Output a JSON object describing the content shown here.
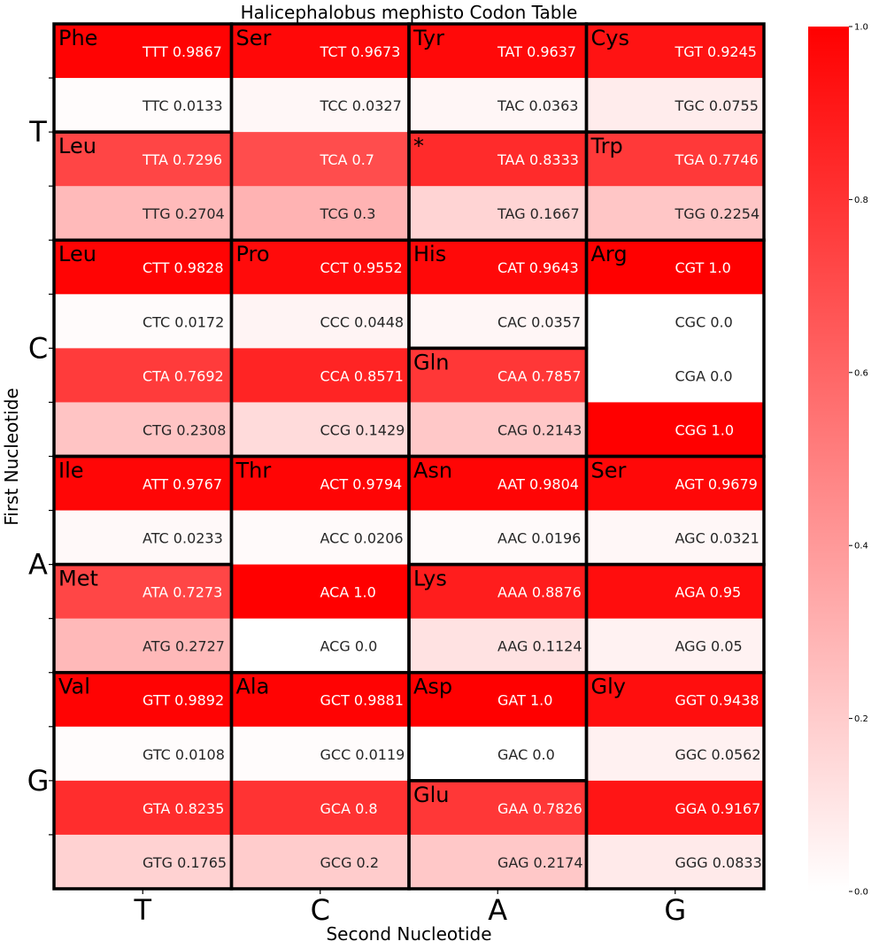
{
  "chart_data": {
    "type": "heatmap",
    "title": "Halicephalobus mephisto Codon Table",
    "xlabel": "Second Nucleotide",
    "ylabel": "First Nucleotide",
    "x_categories": [
      "T",
      "C",
      "A",
      "G"
    ],
    "y_categories": [
      "T",
      "C",
      "A",
      "G"
    ],
    "third_nucleotides": [
      "T",
      "C",
      "A",
      "G"
    ],
    "value_range": [
      0,
      1
    ],
    "colormap": {
      "low": "#ffffff",
      "high": "#ff0000"
    },
    "colorbar_ticks": [
      "0.0",
      "0.2",
      "0.4",
      "0.6",
      "0.8",
      "1.0"
    ],
    "codons": [
      {
        "codon": "TTT",
        "value": 0.9867,
        "label": "TTT 0.9867"
      },
      {
        "codon": "TTC",
        "value": 0.0133,
        "label": "TTC 0.0133"
      },
      {
        "codon": "TTA",
        "value": 0.7296,
        "label": "TTA 0.7296"
      },
      {
        "codon": "TTG",
        "value": 0.2704,
        "label": "TTG 0.2704"
      },
      {
        "codon": "TCT",
        "value": 0.9673,
        "label": "TCT 0.9673"
      },
      {
        "codon": "TCC",
        "value": 0.0327,
        "label": "TCC 0.0327"
      },
      {
        "codon": "TCA",
        "value": 0.7,
        "label": "TCA 0.7"
      },
      {
        "codon": "TCG",
        "value": 0.3,
        "label": "TCG 0.3"
      },
      {
        "codon": "TAT",
        "value": 0.9637,
        "label": "TAT 0.9637"
      },
      {
        "codon": "TAC",
        "value": 0.0363,
        "label": "TAC 0.0363"
      },
      {
        "codon": "TAA",
        "value": 0.8333,
        "label": "TAA 0.8333"
      },
      {
        "codon": "TAG",
        "value": 0.1667,
        "label": "TAG 0.1667"
      },
      {
        "codon": "TGT",
        "value": 0.9245,
        "label": "TGT 0.9245"
      },
      {
        "codon": "TGC",
        "value": 0.0755,
        "label": "TGC 0.0755"
      },
      {
        "codon": "TGA",
        "value": 0.7746,
        "label": "TGA 0.7746"
      },
      {
        "codon": "TGG",
        "value": 0.2254,
        "label": "TGG 0.2254"
      },
      {
        "codon": "CTT",
        "value": 0.9828,
        "label": "CTT 0.9828"
      },
      {
        "codon": "CTC",
        "value": 0.0172,
        "label": "CTC 0.0172"
      },
      {
        "codon": "CTA",
        "value": 0.7692,
        "label": "CTA 0.7692"
      },
      {
        "codon": "CTG",
        "value": 0.2308,
        "label": "CTG 0.2308"
      },
      {
        "codon": "CCT",
        "value": 0.9552,
        "label": "CCT 0.9552"
      },
      {
        "codon": "CCC",
        "value": 0.0448,
        "label": "CCC 0.0448"
      },
      {
        "codon": "CCA",
        "value": 0.8571,
        "label": "CCA 0.8571"
      },
      {
        "codon": "CCG",
        "value": 0.1429,
        "label": "CCG 0.1429"
      },
      {
        "codon": "CAT",
        "value": 0.9643,
        "label": "CAT 0.9643"
      },
      {
        "codon": "CAC",
        "value": 0.0357,
        "label": "CAC 0.0357"
      },
      {
        "codon": "CAA",
        "value": 0.7857,
        "label": "CAA 0.7857"
      },
      {
        "codon": "CAG",
        "value": 0.2143,
        "label": "CAG 0.2143"
      },
      {
        "codon": "CGT",
        "value": 1.0,
        "label": "CGT 1.0"
      },
      {
        "codon": "CGC",
        "value": 0.0,
        "label": "CGC 0.0"
      },
      {
        "codon": "CGA",
        "value": 0.0,
        "label": "CGA 0.0"
      },
      {
        "codon": "CGG",
        "value": 1.0,
        "label": "CGG 1.0"
      },
      {
        "codon": "ATT",
        "value": 0.9767,
        "label": "ATT 0.9767"
      },
      {
        "codon": "ATC",
        "value": 0.0233,
        "label": "ATC 0.0233"
      },
      {
        "codon": "ATA",
        "value": 0.7273,
        "label": "ATA 0.7273"
      },
      {
        "codon": "ATG",
        "value": 0.2727,
        "label": "ATG 0.2727"
      },
      {
        "codon": "ACT",
        "value": 0.9794,
        "label": "ACT 0.9794"
      },
      {
        "codon": "ACC",
        "value": 0.0206,
        "label": "ACC 0.0206"
      },
      {
        "codon": "ACA",
        "value": 1.0,
        "label": "ACA 1.0"
      },
      {
        "codon": "ACG",
        "value": 0.0,
        "label": "ACG 0.0"
      },
      {
        "codon": "AAT",
        "value": 0.9804,
        "label": "AAT 0.9804"
      },
      {
        "codon": "AAC",
        "value": 0.0196,
        "label": "AAC 0.0196"
      },
      {
        "codon": "AAA",
        "value": 0.8876,
        "label": "AAA 0.8876"
      },
      {
        "codon": "AAG",
        "value": 0.1124,
        "label": "AAG 0.1124"
      },
      {
        "codon": "AGT",
        "value": 0.9679,
        "label": "AGT 0.9679"
      },
      {
        "codon": "AGC",
        "value": 0.0321,
        "label": "AGC 0.0321"
      },
      {
        "codon": "AGA",
        "value": 0.95,
        "label": "AGA 0.95"
      },
      {
        "codon": "AGG",
        "value": 0.05,
        "label": "AGG 0.05"
      },
      {
        "codon": "GTT",
        "value": 0.9892,
        "label": "GTT 0.9892"
      },
      {
        "codon": "GTC",
        "value": 0.0108,
        "label": "GTC 0.0108"
      },
      {
        "codon": "GTA",
        "value": 0.8235,
        "label": "GTA 0.8235"
      },
      {
        "codon": "GTG",
        "value": 0.1765,
        "label": "GTG 0.1765"
      },
      {
        "codon": "GCT",
        "value": 0.9881,
        "label": "GCT 0.9881"
      },
      {
        "codon": "GCC",
        "value": 0.0119,
        "label": "GCC 0.0119"
      },
      {
        "codon": "GCA",
        "value": 0.8,
        "label": "GCA 0.8"
      },
      {
        "codon": "GCG",
        "value": 0.2,
        "label": "GCG 0.2"
      },
      {
        "codon": "GAT",
        "value": 1.0,
        "label": "GAT 1.0"
      },
      {
        "codon": "GAC",
        "value": 0.0,
        "label": "GAC 0.0"
      },
      {
        "codon": "GAA",
        "value": 0.7826,
        "label": "GAA 0.7826"
      },
      {
        "codon": "GAG",
        "value": 0.2174,
        "label": "GAG 0.2174"
      },
      {
        "codon": "GGT",
        "value": 0.9438,
        "label": "GGT 0.9438"
      },
      {
        "codon": "GGC",
        "value": 0.0562,
        "label": "GGC 0.0562"
      },
      {
        "codon": "GGA",
        "value": 0.9167,
        "label": "GGA 0.9167"
      },
      {
        "codon": "GGG",
        "value": 0.0833,
        "label": "GGG 0.0833"
      }
    ],
    "amino_acid_groups": [
      {
        "amino_acid": "Phe",
        "codons": [
          "TTT",
          "TTC"
        ]
      },
      {
        "amino_acid": "Leu",
        "codons": [
          "TTA",
          "TTG"
        ]
      },
      {
        "amino_acid": "Ser",
        "codons": [
          "TCT",
          "TCC",
          "TCA",
          "TCG"
        ]
      },
      {
        "amino_acid": "Tyr",
        "codons": [
          "TAT",
          "TAC"
        ]
      },
      {
        "amino_acid": "*",
        "codons": [
          "TAA",
          "TAG"
        ]
      },
      {
        "amino_acid": "Cys",
        "codons": [
          "TGT",
          "TGC"
        ]
      },
      {
        "amino_acid": "Trp",
        "codons": [
          "TGA",
          "TGG"
        ]
      },
      {
        "amino_acid": "Leu",
        "codons": [
          "CTT",
          "CTC",
          "CTA",
          "CTG"
        ]
      },
      {
        "amino_acid": "Pro",
        "codons": [
          "CCT",
          "CCC",
          "CCA",
          "CCG"
        ]
      },
      {
        "amino_acid": "His",
        "codons": [
          "CAT",
          "CAC"
        ]
      },
      {
        "amino_acid": "Gln",
        "codons": [
          "CAA",
          "CAG"
        ]
      },
      {
        "amino_acid": "Arg",
        "codons": [
          "CGT",
          "CGC",
          "CGA",
          "CGG"
        ]
      },
      {
        "amino_acid": "Ile",
        "codons": [
          "ATT",
          "ATC"
        ]
      },
      {
        "amino_acid": "Met",
        "codons": [
          "ATA",
          "ATG"
        ]
      },
      {
        "amino_acid": "Thr",
        "codons": [
          "ACT",
          "ACC",
          "ACA",
          "ACG"
        ]
      },
      {
        "amino_acid": "Asn",
        "codons": [
          "AAT",
          "AAC"
        ]
      },
      {
        "amino_acid": "Lys",
        "codons": [
          "AAA",
          "AAG"
        ]
      },
      {
        "amino_acid": "Ser",
        "codons": [
          "AGT",
          "AGC"
        ]
      },
      {
        "amino_acid": "Arg",
        "codons": [
          "AGA",
          "AGG"
        ]
      },
      {
        "amino_acid": "Val",
        "codons": [
          "GTT",
          "GTC",
          "GTA",
          "GTG"
        ]
      },
      {
        "amino_acid": "Ala",
        "codons": [
          "GCT",
          "GCC",
          "GCA",
          "GCG"
        ]
      },
      {
        "amino_acid": "Asp",
        "codons": [
          "GAT",
          "GAC"
        ]
      },
      {
        "amino_acid": "Glu",
        "codons": [
          "GAA",
          "GAG"
        ]
      },
      {
        "amino_acid": "Gly",
        "codons": [
          "GGT",
          "GGC",
          "GGA",
          "GGG"
        ]
      }
    ],
    "hidden_amino_acid_labels": [
      "Arg"
    ]
  }
}
